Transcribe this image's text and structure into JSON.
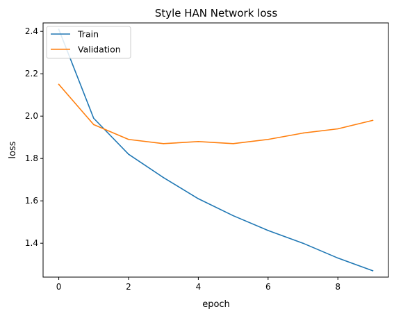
{
  "chart_data": {
    "type": "line",
    "title": "Style HAN Network loss",
    "xlabel": "epoch",
    "ylabel": "loss",
    "x": [
      0,
      1,
      2,
      3,
      4,
      5,
      6,
      7,
      8,
      9
    ],
    "series": [
      {
        "name": "Train",
        "color": "#1f77b4",
        "values": [
          2.41,
          1.99,
          1.82,
          1.71,
          1.61,
          1.53,
          1.46,
          1.4,
          1.33,
          1.27
        ]
      },
      {
        "name": "Validation",
        "color": "#ff7f0e",
        "values": [
          2.15,
          1.96,
          1.89,
          1.87,
          1.88,
          1.87,
          1.89,
          1.92,
          1.94,
          1.98
        ]
      }
    ],
    "xlim": [
      -0.45,
      9.45
    ],
    "ylim": [
      1.24,
      2.44
    ],
    "xticks": [
      0,
      2,
      4,
      6,
      8
    ],
    "yticks": [
      1.4,
      1.6,
      1.8,
      2.0,
      2.2,
      2.4
    ],
    "xtick_labels": [
      "0",
      "2",
      "4",
      "6",
      "8"
    ],
    "ytick_labels": [
      "1.4",
      "1.6",
      "1.8",
      "2.0",
      "2.2",
      "2.4"
    ],
    "grid": false,
    "legend_position": "upper-left"
  }
}
